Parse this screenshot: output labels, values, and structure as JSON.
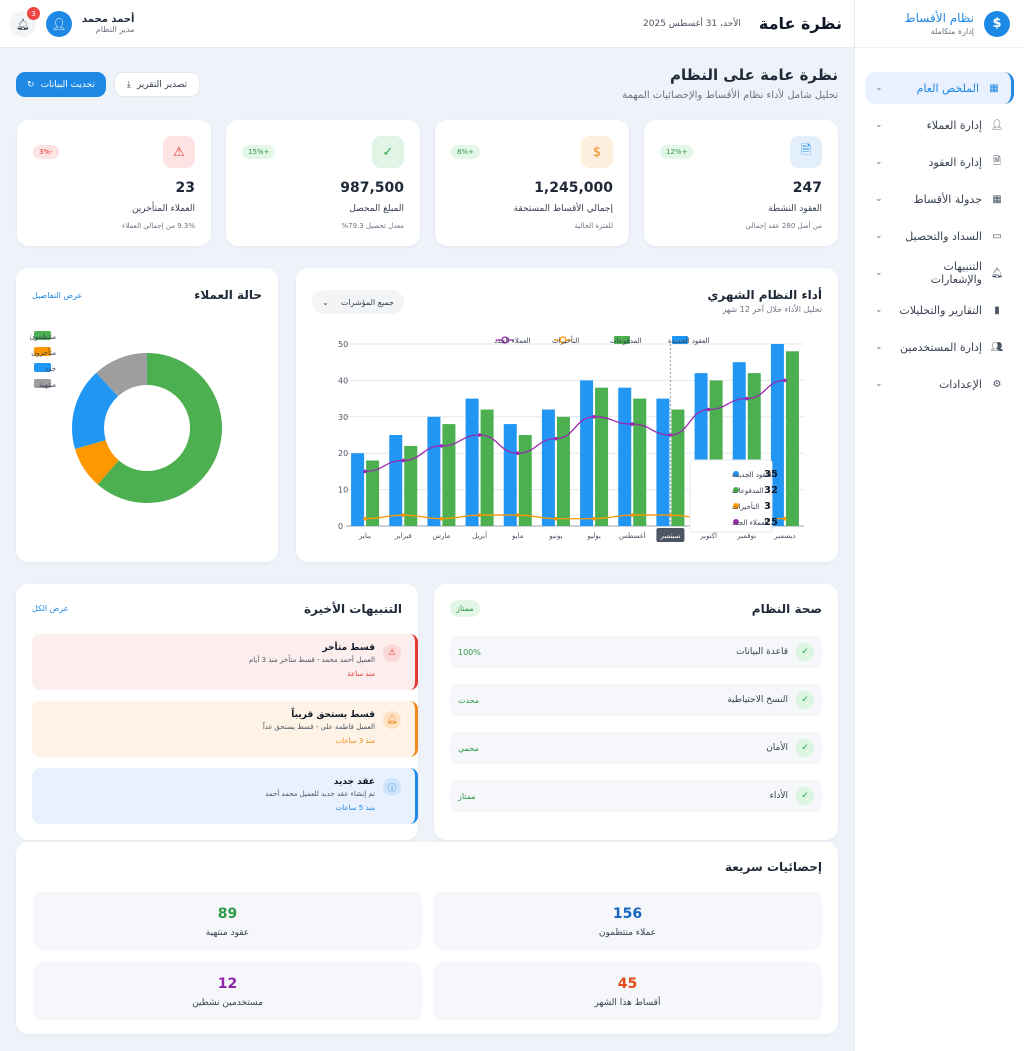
{
  "brand": {
    "title": "نظام الأقساط",
    "subtitle": "إدارة متكاملة"
  },
  "nav": [
    {
      "label": "الملخص العام",
      "icon": "grid-icon",
      "active": true
    },
    {
      "label": "إدارة العملاء",
      "icon": "user-icon"
    },
    {
      "label": "إدارة العقود",
      "icon": "document-icon"
    },
    {
      "label": "جدولة الأقساط",
      "icon": "calendar-icon"
    },
    {
      "label": "السداد والتحصيل",
      "icon": "wallet-icon"
    },
    {
      "label": "التنبيهات والإشعارات",
      "icon": "bell-icon"
    },
    {
      "label": "التقارير والتحليلات",
      "icon": "bar-chart-icon"
    },
    {
      "label": "إدارة المستخدمين",
      "icon": "users-icon"
    },
    {
      "label": "الإعدادات",
      "icon": "gear-icon"
    }
  ],
  "topbar": {
    "title": "نظرة عامة",
    "date": "الأحد، 31 أغسطس 2025",
    "user_name": "أحمد محمد",
    "user_role": "مدير النظام",
    "notifications": "3"
  },
  "header": {
    "title": "نظرة عامة على النظام",
    "subtitle": "تحليل شامل لأداء نظام الأقساط والإحصائيات المهمة",
    "refresh": "تحديث البيانات",
    "export": "تصدير التقرير"
  },
  "stats": [
    {
      "value": "247",
      "label": "العقود النشطة",
      "sub": "من أصل 280 عقد إجمالي",
      "trend": "+12%",
      "icon": "document-icon",
      "color": "#1e88e5",
      "bg": "#e3f0fc"
    },
    {
      "value": "1,245,000",
      "label": "إجمالي الأقساط المستحقة",
      "sub": "للفترة الحالية",
      "trend": "+8%",
      "icon": "dollar-icon",
      "color": "#f08a1c",
      "bg": "#fdeedd"
    },
    {
      "value": "987,500",
      "label": "المبلغ المحصل",
      "sub": "معدل تحصيل 79.3%",
      "trend": "+15%",
      "icon": "check-icon",
      "color": "#2e9b46",
      "bg": "#e0f5e5"
    },
    {
      "value": "23",
      "label": "العملاء المتأخرين",
      "sub": "9.3% من إجمالي العملاء",
      "trend": "-3%",
      "icon": "warning-icon",
      "color": "#e53935",
      "bg": "#fde3e3"
    }
  ],
  "perf": {
    "title": "أداء النظام الشهري",
    "subtitle": "تحليل الأداء خلال آخر 12 شهر",
    "filter": "جميع المؤشرات"
  },
  "chart_data": {
    "type": "bar",
    "categories": [
      "يناير",
      "فبراير",
      "مارس",
      "أبريل",
      "مايو",
      "يونيو",
      "يوليو",
      "أغسطس",
      "سبتمبر",
      "أكتوبر",
      "نوفمبر",
      "ديسمبر"
    ],
    "series": [
      {
        "name": "العقود الجديدة",
        "type": "bar",
        "color": "#2196f3",
        "values": [
          20,
          25,
          30,
          35,
          28,
          32,
          40,
          38,
          35,
          42,
          45,
          50
        ]
      },
      {
        "name": "المدفوعات",
        "type": "bar",
        "color": "#4caf50",
        "values": [
          18,
          22,
          28,
          32,
          25,
          30,
          38,
          35,
          32,
          40,
          42,
          48
        ]
      },
      {
        "name": "التأخيرات",
        "type": "line",
        "color": "#ff9800",
        "values": [
          2,
          3,
          2,
          3,
          3,
          2,
          2,
          3,
          3,
          2,
          2,
          2
        ]
      },
      {
        "name": "العملاء الجدد",
        "type": "line",
        "color": "#9c27b0",
        "values": [
          15,
          18,
          22,
          25,
          20,
          24,
          30,
          28,
          25,
          32,
          35,
          40
        ]
      }
    ],
    "ylim": [
      0,
      50
    ],
    "yticks": [
      0,
      10,
      20,
      30,
      40,
      50
    ],
    "grid": true,
    "legend": "top",
    "tooltip": {
      "month": "سبتمبر",
      "rows": [
        {
          "name": "العقود الجديدة",
          "value": "35",
          "color": "#2196f3"
        },
        {
          "name": "المدفوعات",
          "value": "32",
          "color": "#4caf50"
        },
        {
          "name": "التأخيرات",
          "value": "3",
          "color": "#ff9800"
        },
        {
          "name": "العملاء الجدد",
          "value": "25",
          "color": "#9c27b0"
        }
      ]
    }
  },
  "customers": {
    "title": "حالة العملاء",
    "link": "عرض التفاصيل",
    "slices": [
      {
        "label": "منتظمون",
        "value": 156,
        "color": "#4caf50"
      },
      {
        "label": "متأخرون",
        "value": 23,
        "color": "#ff9800"
      },
      {
        "label": "جدد",
        "value": 45,
        "color": "#2196f3"
      },
      {
        "label": "منتهية",
        "value": 30,
        "color": "#9e9e9e"
      }
    ]
  },
  "health": {
    "title": "صحة النظام",
    "status": "ممتاز",
    "rows": [
      {
        "name": "قاعدة البيانات",
        "value": "100%"
      },
      {
        "name": "النسخ الاحتياطية",
        "value": "محدث"
      },
      {
        "name": "الأمان",
        "value": "محمي"
      },
      {
        "name": "الأداء",
        "value": "ممتاز"
      }
    ]
  },
  "alerts": {
    "title": "التنبيهات الأخيرة",
    "link": "عرض الكل",
    "items": [
      {
        "title": "قسط متأخر",
        "desc": "العميل أحمد محمد - قسط متأخر منذ 3 أيام",
        "time": "منذ ساعة",
        "icon": "warning-icon",
        "color": "#e53935",
        "bg": "#fdeeee",
        "ic_bg": "#fbd8d8"
      },
      {
        "title": "قسط يستحق قريباً",
        "desc": "العميل فاطمة علي - قسط يستحق غداً",
        "time": "منذ 3 ساعات",
        "icon": "bell-icon",
        "color": "#f08a1c",
        "bg": "#fef3e6",
        "ic_bg": "#fde2c2"
      },
      {
        "title": "عقد جديد",
        "desc": "تم إنشاء عقد جديد للعميل محمد أحمد",
        "time": "منذ 5 ساعات",
        "icon": "info-icon",
        "color": "#1e88e5",
        "bg": "#e8f1fd",
        "ic_bg": "#cfe3fa"
      }
    ]
  },
  "quick": {
    "title": "إحصائيات سريعة",
    "items": [
      {
        "value": "156",
        "label": "عملاء منتظمون",
        "color": "#1565c0"
      },
      {
        "value": "89",
        "label": "عقود منتهية",
        "color": "#2e9b46"
      },
      {
        "value": "45",
        "label": "أقساط هذا الشهر",
        "color": "#e64a19"
      },
      {
        "value": "12",
        "label": "مستخدمين نشطين",
        "color": "#8e24aa"
      }
    ]
  }
}
